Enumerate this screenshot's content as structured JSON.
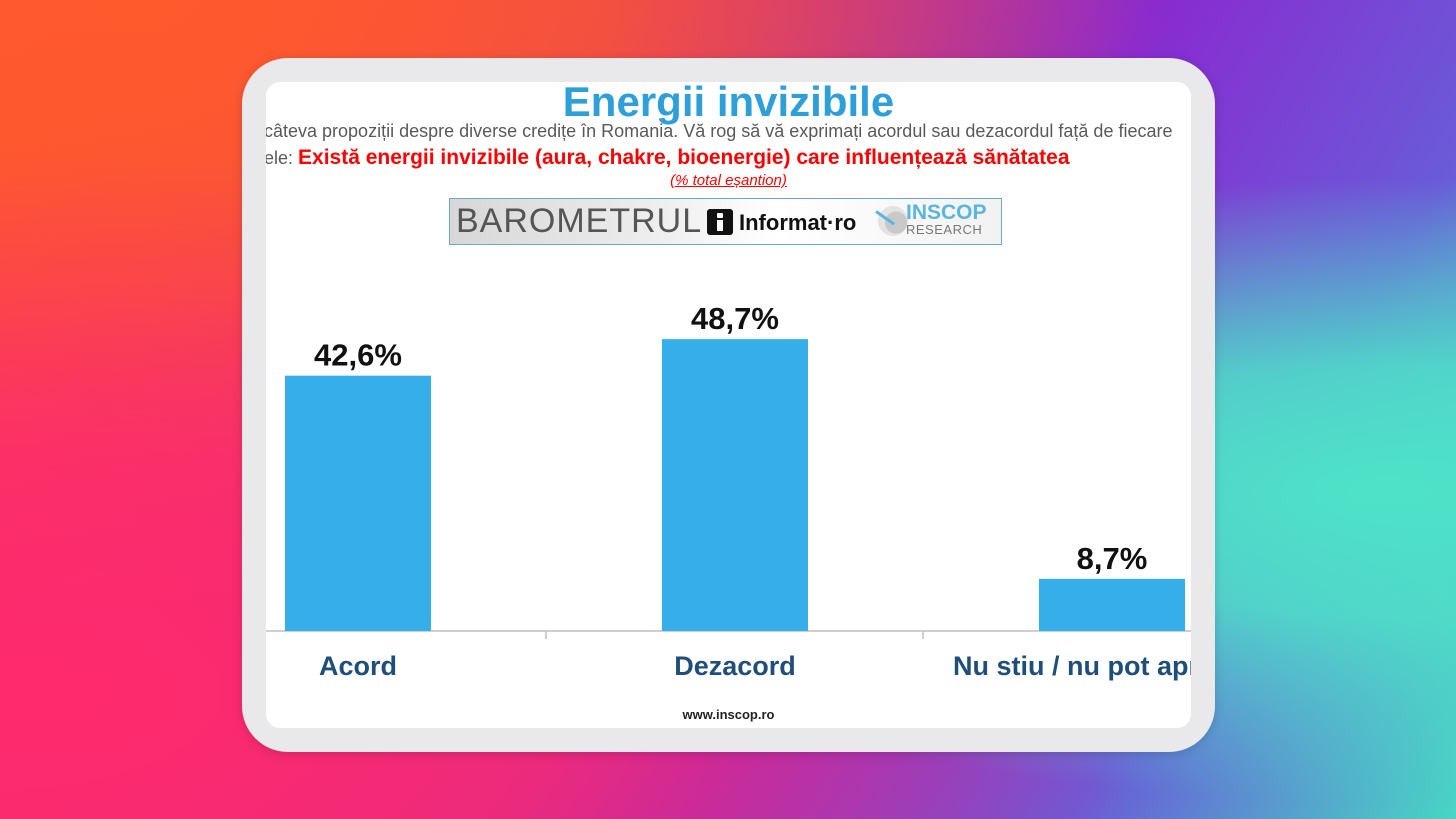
{
  "slide": {
    "title": "Energii invizibile",
    "intro": "câteva propoziții despre diverse credițe în Romania. Vă rog să vă exprimați acordul sau dezacordul față de fiecare",
    "statement_prefix": "ele: ",
    "statement": "Există energii invizibile (aura, chakre, bioenergie) care influențează sănătatea",
    "sample_note": "(% total eșantion)",
    "footer": "www.inscop.ro"
  },
  "logos": {
    "barometrul": "BAROMETRUL",
    "informat": "Informat·ro",
    "inscop": "INSCOP",
    "research": "RESEARCH"
  },
  "colors": {
    "bar": "#35aeea",
    "title": "#2f9fd8",
    "statement": "#ff0000",
    "category_label": "#1f4e79"
  },
  "chart_data": {
    "type": "bar",
    "categories": [
      "Acord",
      "Dezacord",
      "Nu stiu / nu pot aprecia"
    ],
    "values": [
      42.6,
      48.7,
      8.7
    ],
    "value_labels": [
      "42,6%",
      "48,7%",
      "8,7%"
    ],
    "ylim": [
      0,
      50
    ],
    "grid": false,
    "legend": "none"
  }
}
